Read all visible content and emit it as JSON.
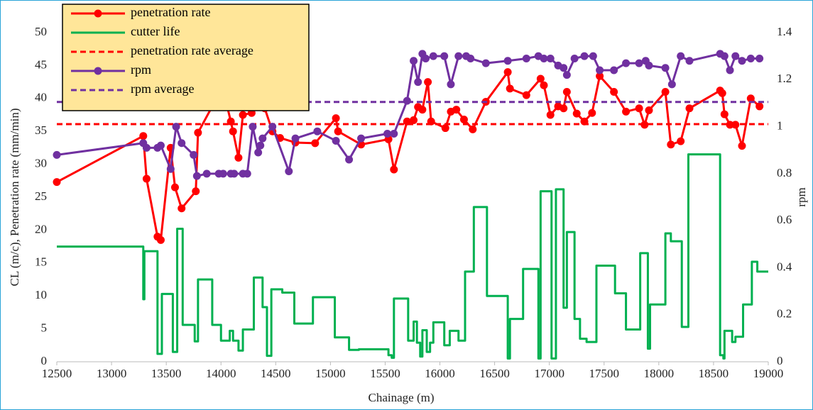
{
  "chart_data": {
    "type": "line",
    "x_label": "Chainage (m)",
    "y_label": "CL (m/c),  Penetration rate (mm/min)",
    "y2_label": "rpm",
    "xlim": [
      12500,
      19000
    ],
    "xticks": [
      12500,
      13000,
      13500,
      14000,
      14500,
      15000,
      15500,
      16000,
      16500,
      17000,
      17500,
      18000,
      18500,
      19000
    ],
    "ylim": [
      0,
      50
    ],
    "yticks": [
      0,
      5,
      10,
      15,
      20,
      25,
      30,
      35,
      40,
      45,
      50
    ],
    "y2lim": [
      0,
      1.4
    ],
    "y2ticks": [
      0,
      0.2,
      0.4,
      0.6,
      0.8,
      1,
      1.2,
      1.4
    ],
    "grid": false,
    "legend": "top-left",
    "series": [
      {
        "name": "penetration rate",
        "color": "#ff0000",
        "marker": true,
        "x": [
          12500,
          13290,
          13320,
          13420,
          13450,
          13540,
          13580,
          13640,
          13770,
          13790,
          13920,
          14020,
          14090,
          14110,
          14160,
          14200,
          14280,
          14340,
          14390,
          14400,
          14470,
          14540,
          14680,
          14860,
          15050,
          15070,
          15280,
          15530,
          15580,
          15700,
          15760,
          15800,
          15840,
          15890,
          15920,
          16050,
          16100,
          16150,
          16220,
          16300,
          16420,
          16620,
          16640,
          16790,
          16920,
          16950,
          17010,
          17080,
          17130,
          17160,
          17250,
          17320,
          17390,
          17460,
          17590,
          17700,
          17820,
          17870,
          17910,
          18060,
          18110,
          18200,
          18280,
          18560,
          18580,
          18600,
          18650,
          18700,
          18760,
          18840,
          18920
        ],
        "values": [
          27.3,
          34.3,
          27.8,
          19,
          18.5,
          32.5,
          26.5,
          23.3,
          25.9,
          34.8,
          38.8,
          41.3,
          36.5,
          35,
          31,
          37.5,
          37.8,
          40,
          39.7,
          38.5,
          35,
          34,
          33.3,
          33.2,
          37,
          35,
          33,
          33.8,
          29.2,
          36.5,
          36.7,
          38.7,
          38.3,
          42.5,
          36.5,
          35.5,
          38,
          38.3,
          36.8,
          35.3,
          39.5,
          44,
          41.5,
          40.5,
          43,
          42,
          37.5,
          38.8,
          38.5,
          41,
          37.7,
          36.5,
          37.8,
          43.4,
          41,
          38,
          38.5,
          36,
          38.2,
          41,
          33,
          33.5,
          38.5,
          41.2,
          40.8,
          37.6,
          36,
          36,
          32.8,
          40,
          38.8
        ]
      },
      {
        "name": "cutter life",
        "color": "#00b050",
        "step": true,
        "x": [
          12500,
          13290,
          13300,
          13420,
          13460,
          13560,
          13600,
          13650,
          13760,
          13790,
          13920,
          14000,
          14080,
          14110,
          14160,
          14200,
          14300,
          14380,
          14420,
          14460,
          14560,
          14670,
          14840,
          15040,
          15170,
          15260,
          15530,
          15560,
          15580,
          15710,
          15760,
          15790,
          15820,
          15840,
          15880,
          15910,
          15940,
          16040,
          16090,
          16170,
          16230,
          16310,
          16430,
          16620,
          16640,
          16760,
          16900,
          16920,
          17020,
          17060,
          17130,
          17160,
          17230,
          17280,
          17340,
          17430,
          17600,
          17700,
          17830,
          17900,
          17920,
          18060,
          18110,
          18210,
          18270,
          18560,
          18590,
          18600,
          18670,
          18700,
          18770,
          18850,
          18900
        ],
        "values": [
          17.5,
          9.5,
          16.8,
          1.2,
          10.3,
          1.5,
          20.2,
          5.6,
          3.1,
          12.5,
          5.6,
          3.2,
          4.7,
          3.2,
          1.7,
          4.9,
          12.8,
          8.3,
          0.9,
          11,
          10.5,
          5.8,
          9.8,
          3.7,
          1.8,
          1.9,
          1,
          0.6,
          9.6,
          3.2,
          6.1,
          2.9,
          0.8,
          4.8,
          1.5,
          2.9,
          6,
          2.5,
          4.7,
          3.2,
          13.7,
          23.5,
          10,
          0.5,
          6.5,
          14.1,
          0.5,
          25.9,
          0.5,
          26.2,
          8.2,
          19.7,
          6.5,
          3.5,
          3,
          14.6,
          10.4,
          4.9,
          16.5,
          2,
          8.7,
          19.5,
          18.3,
          5.3,
          31.5,
          1,
          0.5,
          4.7,
          3,
          3.8,
          8.7,
          15.2,
          13.7
        ]
      },
      {
        "name": "penetration rate average",
        "color": "#ff0000",
        "dashed": true,
        "x": [
          12500,
          19000
        ],
        "values": [
          36.1,
          36.1
        ]
      },
      {
        "name": "rpm",
        "color": "#7030a0",
        "marker": true,
        "axis": "y2",
        "x": [
          12500,
          13290,
          13320,
          13420,
          13450,
          13540,
          13590,
          13640,
          13750,
          13780,
          13870,
          13980,
          14020,
          14090,
          14120,
          14200,
          14240,
          14290,
          14340,
          14360,
          14380,
          14470,
          14620,
          14680,
          14880,
          15050,
          15170,
          15280,
          15520,
          15580,
          15700,
          15760,
          15800,
          15840,
          15870,
          15940,
          16040,
          16100,
          16170,
          16240,
          16280,
          16420,
          16620,
          16790,
          16900,
          16950,
          17010,
          17080,
          17130,
          17160,
          17230,
          17320,
          17400,
          17460,
          17590,
          17700,
          17820,
          17880,
          17910,
          18060,
          18120,
          18200,
          18280,
          18560,
          18600,
          18650,
          18700,
          18760,
          18840,
          18920
        ],
        "values": [
          0.88,
          0.93,
          0.91,
          0.91,
          0.92,
          0.82,
          1.0,
          0.93,
          0.88,
          0.79,
          0.8,
          0.8,
          0.8,
          0.8,
          0.8,
          0.8,
          0.8,
          1.0,
          0.89,
          0.92,
          0.95,
          1.0,
          0.81,
          0.95,
          0.98,
          0.94,
          0.86,
          0.95,
          0.97,
          0.97,
          1.11,
          1.28,
          1.19,
          1.31,
          1.29,
          1.3,
          1.3,
          1.18,
          1.3,
          1.3,
          1.29,
          1.27,
          1.28,
          1.29,
          1.3,
          1.29,
          1.29,
          1.26,
          1.25,
          1.22,
          1.29,
          1.3,
          1.3,
          1.24,
          1.24,
          1.27,
          1.27,
          1.28,
          1.26,
          1.25,
          1.18,
          1.3,
          1.28,
          1.31,
          1.3,
          1.24,
          1.3,
          1.28,
          1.29,
          1.29
        ]
      },
      {
        "name": "rpm average",
        "color": "#7030a0",
        "dashed": true,
        "axis": "y2",
        "x": [
          12500,
          19000
        ],
        "values": [
          1.105,
          1.105
        ]
      }
    ]
  }
}
